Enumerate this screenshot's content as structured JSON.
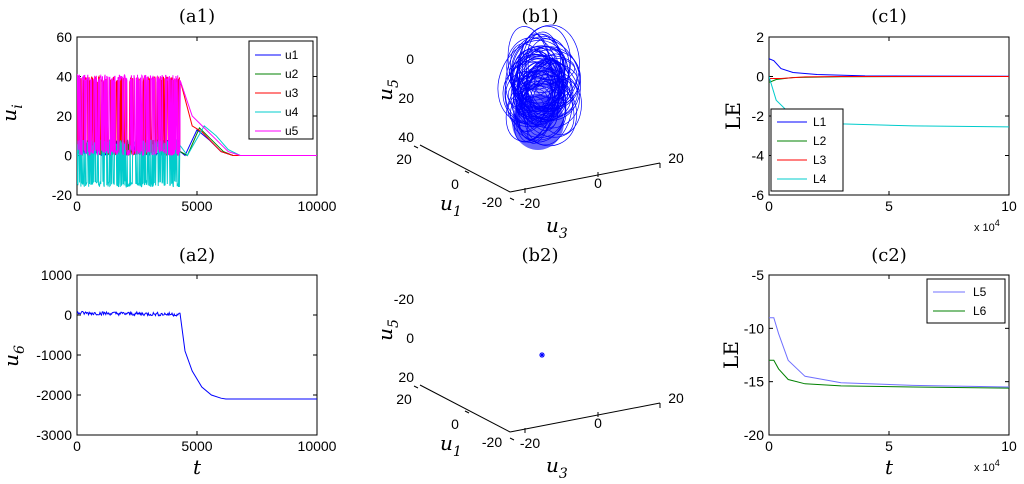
{
  "chart_data": [
    {
      "id": "a1",
      "type": "line",
      "title": "(a1)",
      "ylabel": "u",
      "ylabel_sub": "i",
      "xlabel": "",
      "xlim": [
        0,
        10000
      ],
      "ylim": [
        -20,
        60
      ],
      "xticks": [
        0,
        5000,
        10000
      ],
      "yticks": [
        -20,
        0,
        20,
        40,
        60
      ],
      "legend": "top-right",
      "series": [
        {
          "name": "u1",
          "color": "#0000ff",
          "x": [
            0,
            4300,
            4500,
            5000,
            5500,
            6000,
            6500,
            7000,
            10000
          ],
          "y": [
            0,
            2,
            0,
            13,
            8,
            2,
            0,
            0,
            0
          ]
        },
        {
          "name": "u2",
          "color": "#008000",
          "x": [
            0,
            4300,
            4600,
            5100,
            5600,
            6100,
            6500,
            10000
          ],
          "y": [
            0,
            2,
            0,
            14,
            8,
            2,
            0,
            0
          ]
        },
        {
          "name": "u3",
          "color": "#ff0000",
          "x": [
            0,
            4300,
            4800,
            5200,
            5600,
            6000,
            6500,
            10000
          ],
          "y": [
            20,
            38,
            15,
            12,
            7,
            2,
            0,
            0
          ]
        },
        {
          "name": "u4",
          "color": "#00cccc",
          "x": [
            0,
            4300,
            4600,
            5300,
            5800,
            6300,
            6800,
            10000
          ],
          "y": [
            -5,
            5,
            0,
            15,
            10,
            3,
            0,
            0
          ]
        },
        {
          "name": "u5",
          "color": "#ff00ff",
          "x": [
            0,
            4300,
            4800,
            5300,
            5800,
            6300,
            6800,
            10000
          ],
          "y": [
            20,
            38,
            20,
            14,
            8,
            2,
            0,
            0
          ]
        }
      ]
    },
    {
      "id": "a2",
      "type": "line",
      "title": "(a2)",
      "ylabel": "u",
      "ylabel_sub": "6",
      "xlabel": "t",
      "xlim": [
        0,
        10000
      ],
      "ylim": [
        -3000,
        1000
      ],
      "xticks": [
        0,
        5000,
        10000
      ],
      "yticks": [
        -3000,
        -2000,
        -1000,
        0,
        1000
      ],
      "series": [
        {
          "name": "",
          "color": "#0000ff",
          "x": [
            0,
            500,
            1000,
            1500,
            2000,
            2500,
            3000,
            3500,
            4000,
            4300,
            4500,
            4800,
            5200,
            5600,
            6000,
            6200,
            10000
          ],
          "y": [
            50,
            80,
            20,
            60,
            -30,
            40,
            -20,
            30,
            0,
            -200,
            -900,
            -1400,
            -1800,
            -2000,
            -2080,
            -2100,
            -2100
          ]
        }
      ]
    },
    {
      "id": "b1",
      "type": "scatter",
      "title": "(b1)",
      "projection": "3d",
      "zlabel": "u",
      "zlabel_sub": "5",
      "xlabel": "u",
      "xlabel_sub": "1",
      "ylabel": "u",
      "ylabel_sub": "3",
      "zticks": [
        0,
        20,
        40
      ],
      "xticks": [
        -20,
        0,
        20
      ],
      "yticks": [
        -20,
        0,
        20
      ],
      "series": [
        {
          "name": "",
          "color": "#0000ff",
          "description": "chaotic attractor"
        }
      ]
    },
    {
      "id": "b2",
      "type": "scatter",
      "title": "(b2)",
      "projection": "3d",
      "zlabel": "u",
      "zlabel_sub": "5",
      "xlabel": "u",
      "xlabel_sub": "1",
      "ylabel": "u",
      "ylabel_sub": "3",
      "zticks": [
        -20,
        0,
        20
      ],
      "xticks": [
        -20,
        0,
        20
      ],
      "yticks": [
        -20,
        0,
        20
      ],
      "series": [
        {
          "name": "",
          "color": "#0000ff",
          "x": [
            0
          ],
          "y": [
            0
          ],
          "z": [
            -5
          ]
        }
      ]
    },
    {
      "id": "c1",
      "type": "line",
      "title": "(c1)",
      "ylabel": "LE",
      "xlabel": "",
      "multiplier": "x 10",
      "multiplier_exp": "4",
      "xlim": [
        0,
        10
      ],
      "ylim": [
        -6,
        2
      ],
      "xticks": [
        0,
        5,
        10
      ],
      "yticks": [
        -6,
        -4,
        -2,
        0,
        2
      ],
      "legend": "bottom-left",
      "series": [
        {
          "name": "L1",
          "color": "#0000ff",
          "x": [
            0,
            0.2,
            0.5,
            1,
            2,
            4,
            10
          ],
          "y": [
            0.9,
            0.8,
            0.4,
            0.2,
            0.1,
            0.03,
            0.01
          ]
        },
        {
          "name": "L2",
          "color": "#008000",
          "x": [
            0,
            0.3,
            1,
            3,
            10
          ],
          "y": [
            -0.3,
            -0.15,
            -0.05,
            -0.01,
            0
          ]
        },
        {
          "name": "L3",
          "color": "#ff0000",
          "x": [
            0,
            0.5,
            1.5,
            3,
            10
          ],
          "y": [
            -0.1,
            -0.1,
            -0.02,
            0,
            0
          ]
        },
        {
          "name": "L4",
          "color": "#00cccc",
          "x": [
            0,
            0.3,
            0.8,
            1.5,
            3,
            6,
            10
          ],
          "y": [
            0,
            -1.2,
            -1.8,
            -2.2,
            -2.4,
            -2.5,
            -2.55
          ]
        }
      ]
    },
    {
      "id": "c2",
      "type": "line",
      "title": "(c2)",
      "ylabel": "LE",
      "xlabel": "t",
      "multiplier": "x 10",
      "multiplier_exp": "4",
      "xlim": [
        0,
        10
      ],
      "ylim": [
        -20,
        -5
      ],
      "xticks": [
        0,
        5,
        10
      ],
      "yticks": [
        -20,
        -15,
        -10,
        -5
      ],
      "legend": "top-right",
      "series": [
        {
          "name": "L5",
          "color": "#7070ff",
          "x": [
            0,
            0.2,
            0.4,
            0.8,
            1.5,
            3,
            6,
            10
          ],
          "y": [
            -9,
            -9,
            -10.5,
            -13,
            -14.5,
            -15.1,
            -15.35,
            -15.5
          ]
        },
        {
          "name": "L6",
          "color": "#008000",
          "x": [
            0,
            0.2,
            0.4,
            0.8,
            1.5,
            3,
            6,
            10
          ],
          "y": [
            -13,
            -13,
            -13.8,
            -14.8,
            -15.2,
            -15.4,
            -15.5,
            -15.6
          ]
        }
      ]
    }
  ]
}
